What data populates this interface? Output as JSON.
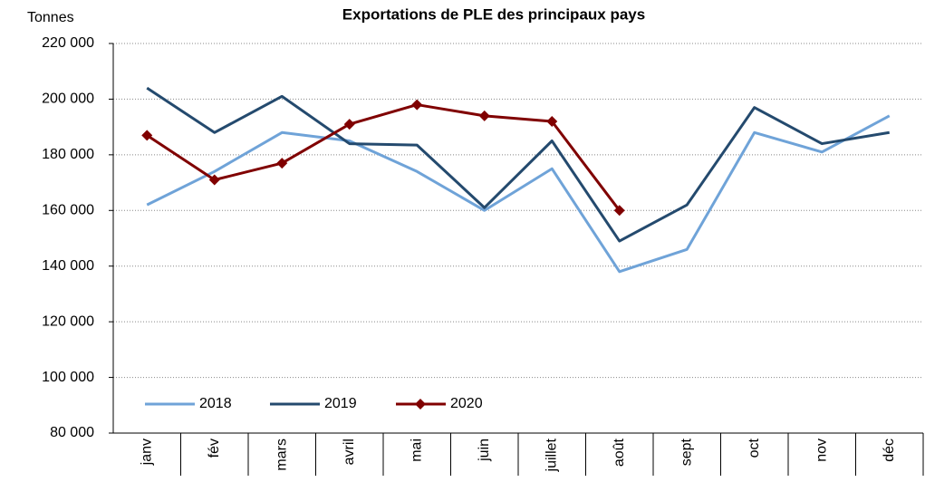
{
  "chart_data": {
    "type": "line",
    "title": "Exportations de PLE des principaux pays",
    "y_label": "Tonnes",
    "categories": [
      "janv",
      "fév",
      "mars",
      "avril",
      "mai",
      "juin",
      "juillet",
      "août",
      "sept",
      "oct",
      "nov",
      "déc"
    ],
    "series": [
      {
        "name": "2018",
        "color": "#6fa3d8",
        "values": [
          162000,
          174000,
          188000,
          185000,
          174000,
          160000,
          175000,
          138000,
          146000,
          188000,
          181000,
          194000
        ]
      },
      {
        "name": "2019",
        "color": "#244a6e",
        "values": [
          204000,
          188000,
          201000,
          184000,
          183500,
          161000,
          185000,
          149000,
          162000,
          197000,
          184000,
          188000
        ]
      },
      {
        "name": "2020",
        "color": "#800000",
        "marker": "diamond",
        "values": [
          187000,
          171000,
          177000,
          191000,
          198000,
          194000,
          192000,
          160000,
          null,
          null,
          null,
          null
        ]
      }
    ],
    "ylim": [
      80000,
      220000
    ],
    "yticks": [
      {
        "value": 80000,
        "label": "80 000"
      },
      {
        "value": 100000,
        "label": "100 000"
      },
      {
        "value": 120000,
        "label": "120 000"
      },
      {
        "value": 140000,
        "label": "140 000"
      },
      {
        "value": 160000,
        "label": "160 000"
      },
      {
        "value": 180000,
        "label": "180 000"
      },
      {
        "value": 200000,
        "label": "200 000"
      },
      {
        "value": 220000,
        "label": "220 000"
      }
    ],
    "grid": true,
    "legend": "bottom-left"
  }
}
